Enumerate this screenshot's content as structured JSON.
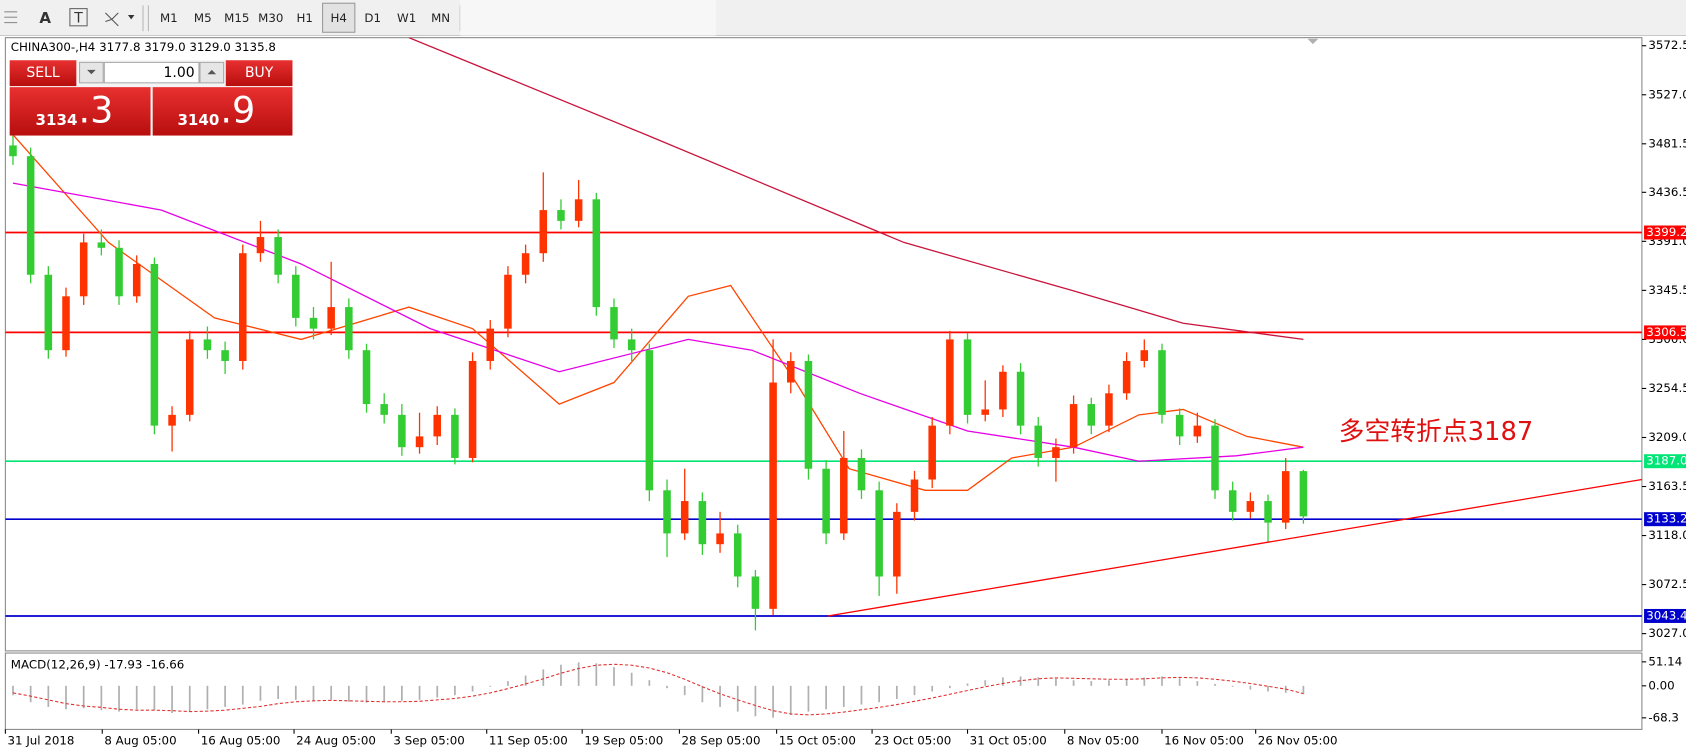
{
  "toolbar": {
    "tools": [
      "A",
      "T"
    ],
    "timeframes": [
      "M1",
      "M5",
      "M15",
      "M30",
      "H1",
      "H4",
      "D1",
      "W1",
      "MN"
    ],
    "active": "H4"
  },
  "trade_panel": {
    "sell": "SELL",
    "lot": "1.00",
    "buy": "BUY",
    "bid_small": "3134",
    "bid_big": ".3",
    "ask_small": "3140",
    "ask_big": ".9"
  },
  "chart_data": {
    "type": "candlestick",
    "header": "CHINA300-,H4  3177.8 3179.0 3129.0 3135.8",
    "annotation": "多空转折点3187",
    "bull_color": "#ff3300",
    "bear_color": "#33cc33",
    "xlim": [
      -0.43,
      92.15
    ],
    "ylim": [
      3011,
      3580
    ],
    "yticks": [
      3572.5,
      {
        "value": 3527,
        "label": "3527.0"
      },
      3481.5,
      3436.5,
      {
        "value": 3391,
        "label": "3391.0"
      },
      3345.5,
      {
        "value": 3300,
        "label": "3300.0"
      },
      3254.5,
      {
        "value": 3209,
        "label": "3209.0"
      },
      3163.5,
      {
        "value": 3118,
        "label": "3118.0"
      },
      3072.5,
      {
        "value": 3027,
        "label": "3027.0"
      }
    ],
    "xticks": [
      {
        "value": -0.43,
        "label": "31 Jul 2018"
      },
      {
        "value": 5.05,
        "label": "8 Aug 05:00"
      },
      {
        "value": 10.5,
        "label": "16 Aug 05:00"
      },
      {
        "value": 15.9,
        "label": "24 Aug 05:00"
      },
      {
        "value": 21.4,
        "label": "3 Sep 05:00"
      },
      {
        "value": 26.8,
        "label": "11 Sep 05:00"
      },
      {
        "value": 32.2,
        "label": "19 Sep 05:00"
      },
      {
        "value": 37.7,
        "label": "28 Sep 05:00"
      },
      {
        "value": 43.2,
        "label": "15 Oct 05:00"
      },
      {
        "value": 48.6,
        "label": "23 Oct 05:00"
      },
      {
        "value": 54,
        "label": "31 Oct 05:00"
      },
      {
        "value": 59.5,
        "label": "8 Nov 05:00"
      },
      {
        "value": 65,
        "label": "16 Nov 05:00"
      },
      {
        "value": 70.3,
        "label": "26 Nov 05:00"
      }
    ],
    "candles": [
      [
        3480,
        3490,
        3462,
        3470
      ],
      [
        3470,
        3478,
        3352,
        3360
      ],
      [
        3360,
        3368,
        3282,
        3290
      ],
      [
        3290,
        3348,
        3284,
        3340
      ],
      [
        3340,
        3398,
        3332,
        3390
      ],
      [
        3390,
        3402,
        3378,
        3385
      ],
      [
        3385,
        3392,
        3332,
        3340
      ],
      [
        3340,
        3378,
        3334,
        3370
      ],
      [
        3370,
        3376,
        3212,
        3220
      ],
      [
        3220,
        3238,
        3196,
        3230
      ],
      [
        3230,
        3308,
        3224,
        3300
      ],
      [
        3300,
        3312,
        3282,
        3290
      ],
      [
        3290,
        3298,
        3268,
        3280
      ],
      [
        3280,
        3388,
        3272,
        3380
      ],
      [
        3380,
        3410,
        3372,
        3395
      ],
      [
        3395,
        3402,
        3352,
        3360
      ],
      [
        3360,
        3368,
        3312,
        3320
      ],
      [
        3320,
        3330,
        3300,
        3310
      ],
      [
        3310,
        3372,
        3304,
        3330
      ],
      [
        3330,
        3338,
        3282,
        3290
      ],
      [
        3290,
        3296,
        3232,
        3240
      ],
      [
        3240,
        3250,
        3222,
        3230
      ],
      [
        3230,
        3240,
        3192,
        3200
      ],
      [
        3200,
        3232,
        3194,
        3210
      ],
      [
        3210,
        3238,
        3202,
        3230
      ],
      [
        3230,
        3236,
        3184,
        3190
      ],
      [
        3190,
        3288,
        3186,
        3280
      ],
      [
        3280,
        3318,
        3272,
        3310
      ],
      [
        3310,
        3368,
        3302,
        3360
      ],
      [
        3360,
        3388,
        3352,
        3380
      ],
      [
        3380,
        3455,
        3372,
        3420
      ],
      [
        3420,
        3430,
        3402,
        3410
      ],
      [
        3410,
        3448,
        3404,
        3430
      ],
      [
        3430,
        3436,
        3322,
        3330
      ],
      [
        3330,
        3338,
        3292,
        3300
      ],
      [
        3300,
        3310,
        3280,
        3290
      ],
      [
        3290,
        3296,
        3150,
        3160
      ],
      [
        3160,
        3170,
        3098,
        3120
      ],
      [
        3120,
        3180,
        3114,
        3150
      ],
      [
        3150,
        3158,
        3100,
        3110
      ],
      [
        3110,
        3140,
        3102,
        3120
      ],
      [
        3120,
        3128,
        3070,
        3080
      ],
      [
        3080,
        3086,
        3030,
        3050
      ],
      [
        3050,
        3300,
        3044,
        3260
      ],
      [
        3260,
        3288,
        3250,
        3280
      ],
      [
        3280,
        3286,
        3170,
        3180
      ],
      [
        3180,
        3188,
        3110,
        3120
      ],
      [
        3120,
        3215,
        3114,
        3190
      ],
      [
        3190,
        3198,
        3152,
        3160
      ],
      [
        3160,
        3168,
        3062,
        3080
      ],
      [
        3080,
        3148,
        3064,
        3140
      ],
      [
        3140,
        3178,
        3132,
        3170
      ],
      [
        3170,
        3228,
        3162,
        3220
      ],
      [
        3220,
        3308,
        3212,
        3300
      ],
      [
        3300,
        3306,
        3222,
        3230
      ],
      [
        3230,
        3262,
        3224,
        3235
      ],
      [
        3235,
        3276,
        3228,
        3270
      ],
      [
        3270,
        3278,
        3212,
        3220
      ],
      [
        3220,
        3228,
        3182,
        3190
      ],
      [
        3190,
        3208,
        3168,
        3200
      ],
      [
        3200,
        3248,
        3194,
        3240
      ],
      [
        3240,
        3246,
        3212,
        3220
      ],
      [
        3220,
        3258,
        3214,
        3250
      ],
      [
        3250,
        3288,
        3244,
        3280
      ],
      [
        3280,
        3300,
        3274,
        3290
      ],
      [
        3290,
        3296,
        3222,
        3230
      ],
      [
        3230,
        3236,
        3202,
        3210
      ],
      [
        3210,
        3232,
        3204,
        3220
      ],
      [
        3220,
        3226,
        3152,
        3160
      ],
      [
        3160,
        3168,
        3132,
        3140
      ],
      [
        3140,
        3158,
        3134,
        3150
      ],
      [
        3150,
        3156,
        3112,
        3130
      ],
      [
        3130,
        3190,
        3124,
        3177.8
      ],
      [
        3177.8,
        3179,
        3129,
        3135.8
      ]
    ],
    "moving_averages": [
      {
        "color": "#ff4500",
        "x": [
          0,
          5.4,
          11.4,
          16.3,
          22.4,
          26,
          30.9,
          34,
          38.2,
          40.6,
          44.3,
          47.3,
          51.6,
          54,
          56.5,
          60,
          63.7,
          66.2,
          69.8,
          73
        ],
        "values": [
          3490,
          3390,
          3320,
          3300,
          3330,
          3310,
          3240,
          3260,
          3340,
          3350,
          3260,
          3180,
          3160,
          3160,
          3190,
          3200,
          3230,
          3235,
          3210,
          3200
        ]
      },
      {
        "color": "#e600e6",
        "x": [
          0,
          8.4,
          16.3,
          23.6,
          30.9,
          38.2,
          41.8,
          47.9,
          54,
          60,
          63.7,
          69.2,
          73
        ],
        "values": [
          3445,
          3420,
          3370,
          3310,
          3270,
          3300,
          3290,
          3250,
          3215,
          3200,
          3187,
          3192,
          3200
        ]
      },
      {
        "color": "#c8143c",
        "x": [
          22.4,
          35.8,
          50.4,
          60,
          66.2,
          73
        ],
        "values": [
          3580,
          3490,
          3390,
          3345,
          3315,
          3300
        ]
      }
    ],
    "trendline": {
      "color": "#ff0000",
      "x": [
        46.1,
        92.15
      ],
      "values": [
        3043.4,
        3170
      ]
    },
    "levels": [
      {
        "value": 3399.2,
        "color": "#ff0000"
      },
      {
        "value": 3306.5,
        "color": "#ff0000"
      },
      {
        "value": 3187,
        "label": "3187.0",
        "color": "#00e676"
      },
      {
        "value": 3133.2,
        "color": "#0000cd"
      },
      {
        "value": 3043.4,
        "color": "#0000cd"
      }
    ],
    "macd": {
      "title": "MACD(12,26,9) -17.93 -16.66",
      "ylim": [
        -93,
        70
      ],
      "yticks": [
        51.14,
        {
          "value": 0,
          "label": "0.00"
        },
        -68.3
      ],
      "histogram_color": "#b0b0b0",
      "signal_color": "#e03030",
      "histogram": [
        -20,
        -35,
        -45,
        -50,
        -48,
        -52,
        -55,
        -50,
        -52,
        -58,
        -55,
        -50,
        -45,
        -40,
        -32,
        -28,
        -30,
        -33,
        -30,
        -34,
        -36,
        -35,
        -32,
        -30,
        -25,
        -20,
        -12,
        -2,
        10,
        22,
        35,
        45,
        50,
        48,
        40,
        28,
        12,
        -5,
        -20,
        -35,
        -45,
        -55,
        -65,
        -68,
        -62,
        -55,
        -50,
        -45,
        -40,
        -35,
        -28,
        -20,
        -12,
        -5,
        5,
        12,
        18,
        20,
        18,
        15,
        12,
        10,
        12,
        15,
        18,
        20,
        16,
        10,
        4,
        -2,
        -8,
        -12,
        -15,
        -17.93
      ],
      "signal": [
        -15,
        -22,
        -30,
        -38,
        -43,
        -46,
        -50,
        -52,
        -52,
        -53,
        -55,
        -54,
        -52,
        -48,
        -44,
        -38,
        -34,
        -32,
        -31,
        -32,
        -33,
        -34,
        -34,
        -33,
        -30,
        -27,
        -22,
        -15,
        -6,
        4,
        15,
        27,
        37,
        44,
        46,
        44,
        38,
        28,
        14,
        -2,
        -17,
        -30,
        -42,
        -53,
        -60,
        -62,
        -60,
        -56,
        -51,
        -46,
        -40,
        -33,
        -26,
        -18,
        -10,
        -2,
        5,
        11,
        15,
        17,
        16,
        15,
        14,
        14,
        15,
        17,
        18,
        17,
        14,
        10,
        5,
        -1,
        -7,
        -16.66
      ]
    }
  }
}
